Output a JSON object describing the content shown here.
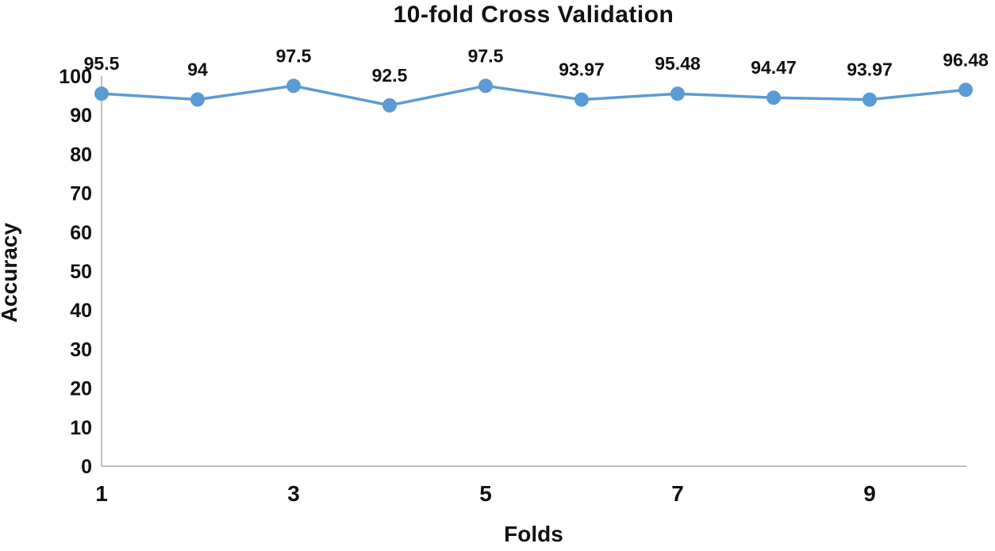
{
  "title": "10-fold Cross Validation",
  "chart_data": {
    "type": "line",
    "title": "10-fold Cross Validation",
    "xlabel": "Folds",
    "ylabel": "Accuracy",
    "x": [
      1,
      2,
      3,
      4,
      5,
      6,
      7,
      8,
      9,
      10
    ],
    "series": [
      {
        "name": "Accuracy",
        "values": [
          95.5,
          94,
          97.5,
          92.5,
          97.5,
          93.97,
          95.48,
          94.47,
          93.97,
          96.48
        ]
      }
    ],
    "data_labels": [
      "95.5",
      "94",
      "97.5",
      "92.5",
      "97.5",
      "93.97",
      "95.48",
      "94.47",
      "93.97",
      "96.48"
    ],
    "x_tick_positions": [
      1,
      3,
      5,
      7,
      9
    ],
    "x_tick_labels": [
      "1",
      "3",
      "5",
      "7",
      "9"
    ],
    "y_ticks": [
      0,
      10,
      20,
      30,
      40,
      50,
      60,
      70,
      80,
      90,
      100
    ],
    "ylim": [
      0,
      100
    ],
    "xlim": [
      1,
      10
    ],
    "grid": false,
    "legend": "none",
    "line_color": "#5B9BD5",
    "marker_color": "#5B9BD5",
    "axis_color": "#BFBFBF",
    "text_color": "#111111"
  }
}
